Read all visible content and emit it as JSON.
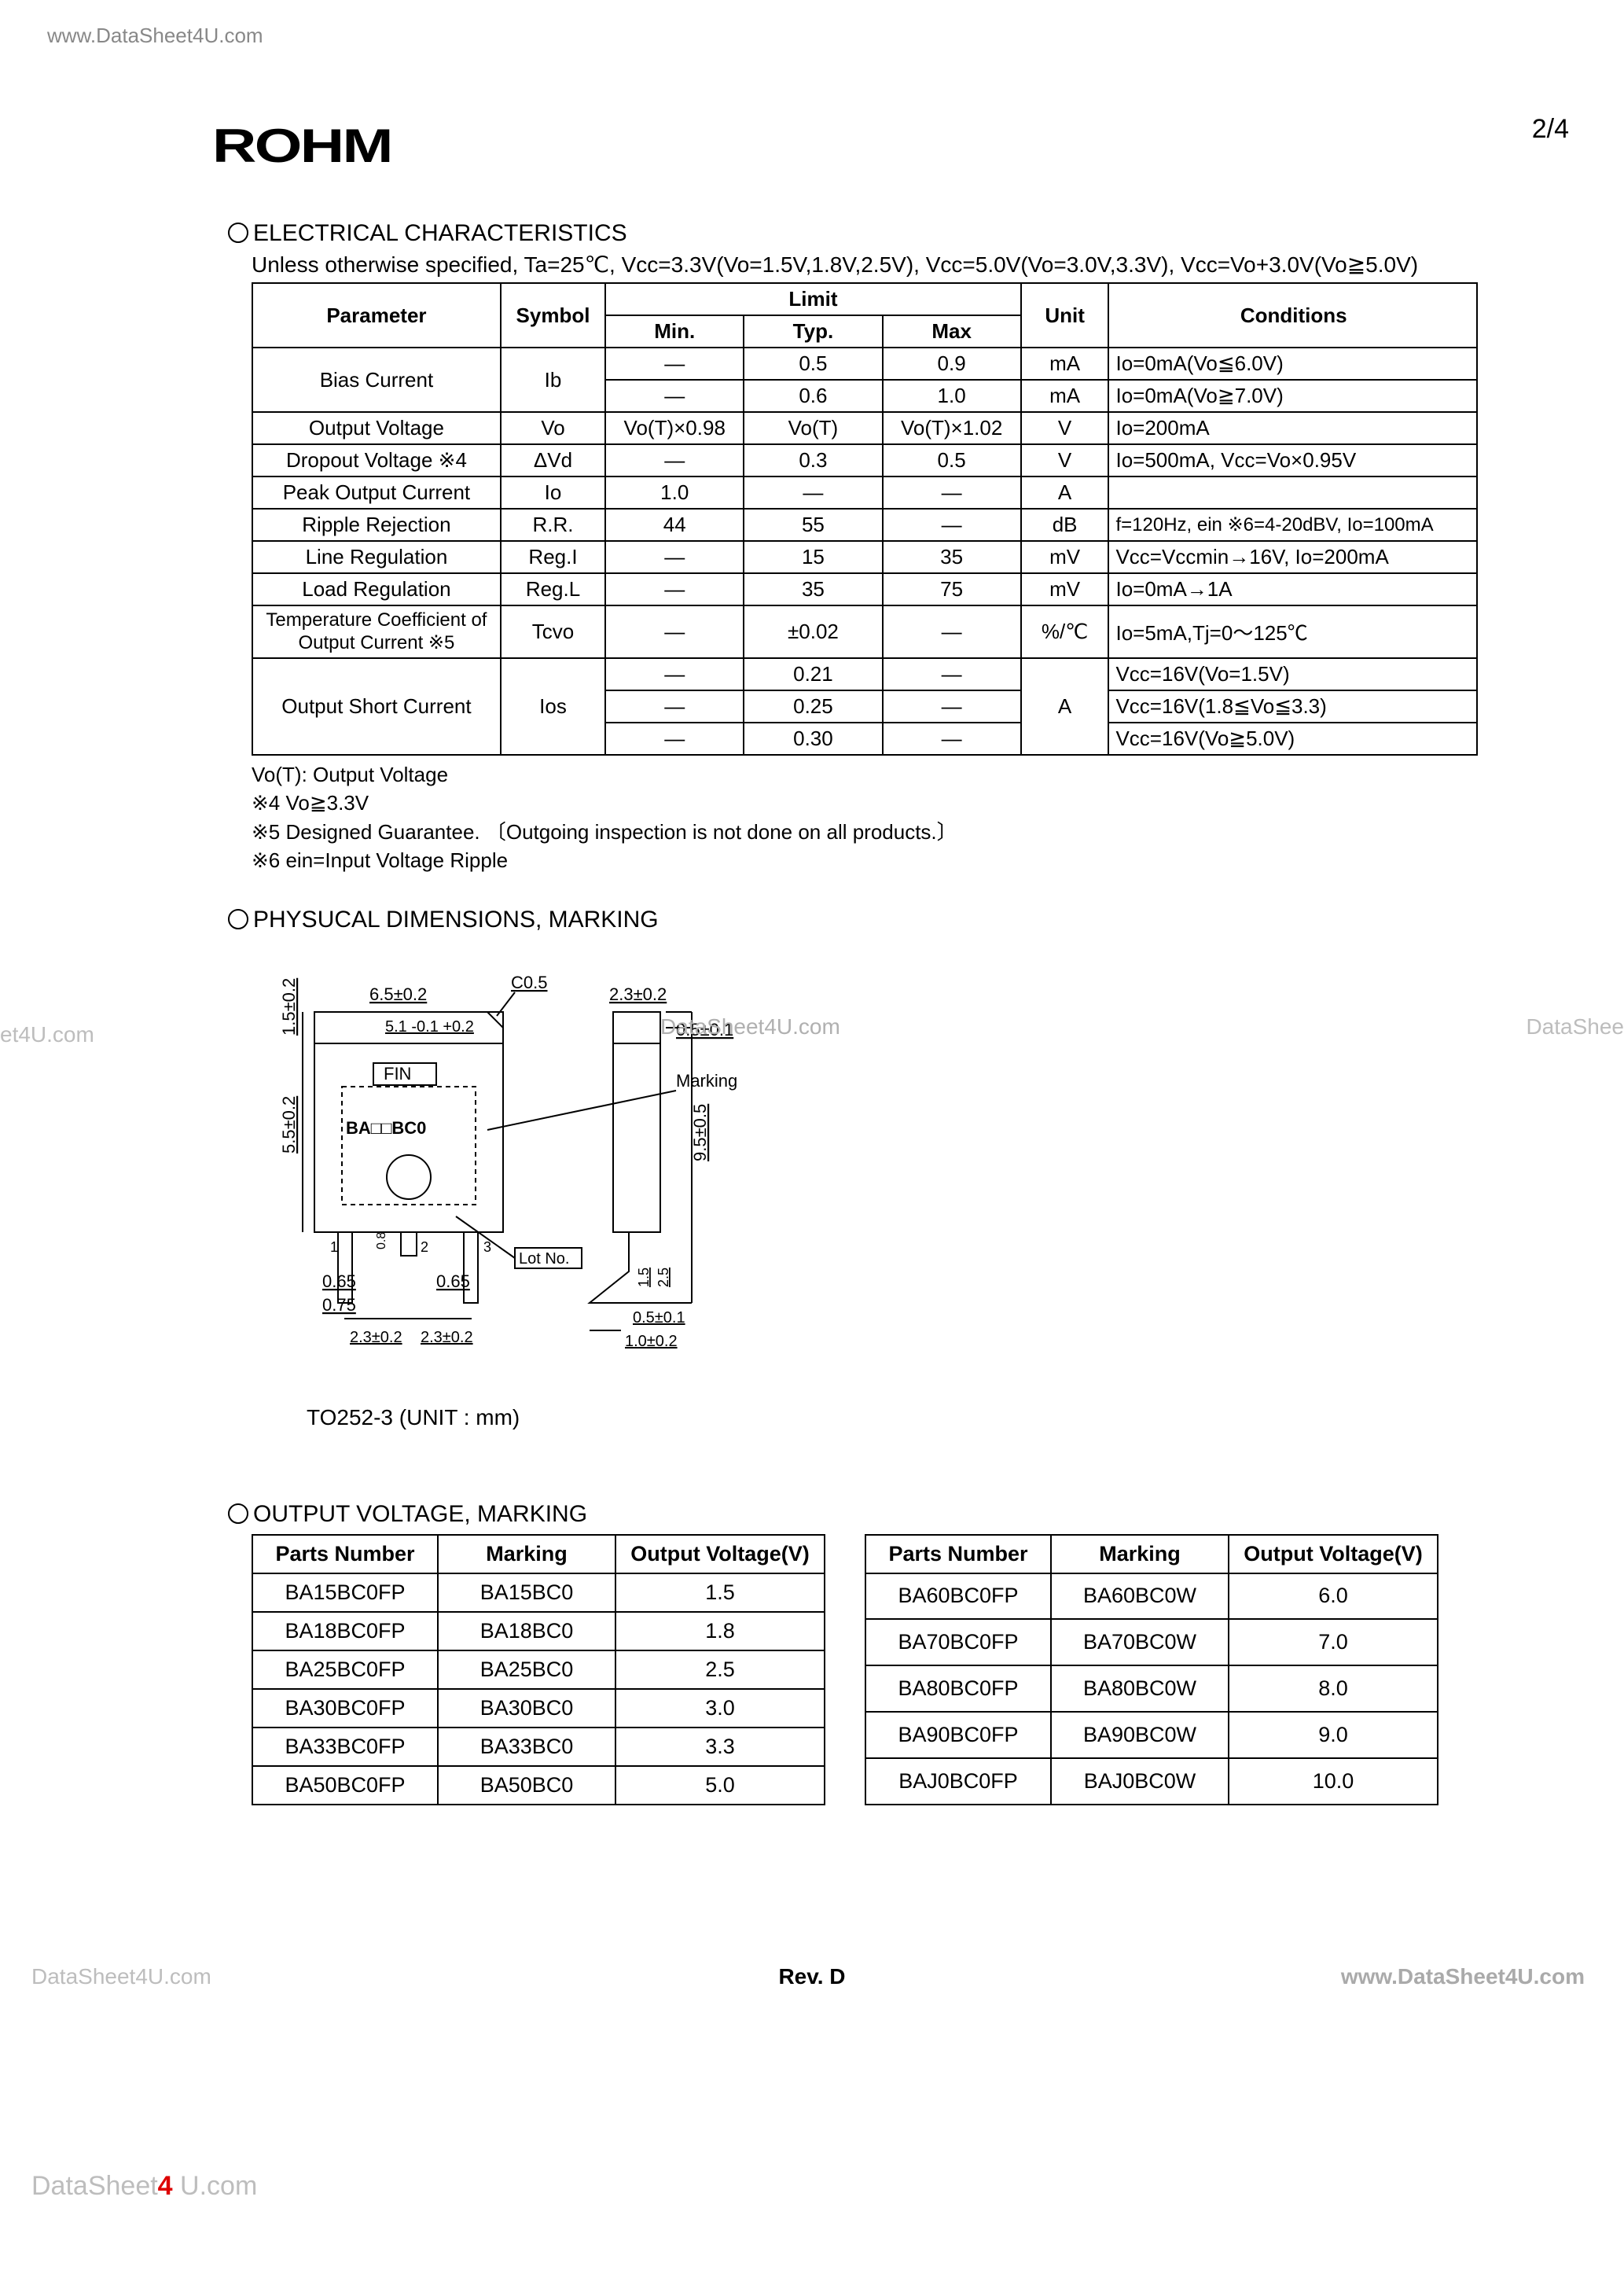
{
  "watermarks": {
    "url_top": "www.DataSheet4U.com",
    "wm_left": "et4U.com",
    "wm_mid": "DataSheet4U.com",
    "wm_right": "DataShee",
    "wm_bl": "DataSheet4U.com",
    "wm_br": "www.DataSheet4U.com",
    "ds4u_prefix": "DataSheet",
    "ds4u_four": "4",
    "ds4u_suffix": " U.com"
  },
  "logo": "ROHM",
  "pagenum": "2/4",
  "rev": "Rev. D",
  "sec1": {
    "title": "ELECTRICAL CHARACTERISTICS",
    "subtitle": "Unless otherwise specified, Ta=25℃, Vcc=3.3V(Vo=1.5V,1.8V,2.5V), Vcc=5.0V(Vo=3.0V,3.3V), Vcc=Vo+3.0V(Vo≧5.0V)",
    "headers": {
      "parameter": "Parameter",
      "symbol": "Symbol",
      "limit": "Limit",
      "min": "Min.",
      "typ": "Typ.",
      "max": "Max",
      "unit": "Unit",
      "conditions": "Conditions"
    },
    "rows": [
      {
        "param": "Bias Current",
        "rowspan": 2,
        "sym": "Ib",
        "min": "—",
        "typ": "0.5",
        "max": "0.9",
        "unit": "mA",
        "cond": "Io=0mA(Vo≦6.0V)"
      },
      {
        "param": "",
        "sym": "",
        "min": "—",
        "typ": "0.6",
        "max": "1.0",
        "unit": "mA",
        "cond": "Io=0mA(Vo≧7.0V)"
      },
      {
        "param": "Output Voltage",
        "sym": "Vo",
        "min": "Vo(T)×0.98",
        "typ": "Vo(T)",
        "max": "Vo(T)×1.02",
        "unit": "V",
        "cond": "Io=200mA"
      },
      {
        "param": "Dropout Voltage  ※4",
        "sym": "ΔVd",
        "min": "—",
        "typ": "0.3",
        "max": "0.5",
        "unit": "V",
        "cond": "Io=500mA, Vcc=Vo×0.95V"
      },
      {
        "param": "Peak Output Current",
        "sym": "Io",
        "min": "1.0",
        "typ": "—",
        "max": "—",
        "unit": "A",
        "cond": ""
      },
      {
        "param": "Ripple Rejection",
        "sym": "R.R.",
        "min": "44",
        "typ": "55",
        "max": "—",
        "unit": "dB",
        "cond": "f=120Hz, ein ※6=4-20dBV, Io=100mA"
      },
      {
        "param": "Line Regulation",
        "sym": "Reg.I",
        "min": "—",
        "typ": "15",
        "max": "35",
        "unit": "mV",
        "cond": "Vcc=Vccmin→16V, Io=200mA"
      },
      {
        "param": "Load Regulation",
        "sym": "Reg.L",
        "min": "—",
        "typ": "35",
        "max": "75",
        "unit": "mV",
        "cond": "Io=0mA→1A"
      },
      {
        "param": "Temperature Coefficient of Output Current  ※5",
        "sym": "Tcvo",
        "min": "—",
        "typ": "±0.02",
        "max": "—",
        "unit": "%/℃",
        "cond": "Io=5mA,Tj=0～125℃"
      },
      {
        "param": "Output Short Current",
        "rowspan": 3,
        "sym": "Ios",
        "min": "—",
        "typ": "0.21",
        "max": "—",
        "unit": "A",
        "cond": "Vcc=16V(Vo=1.5V)"
      },
      {
        "param": "",
        "sym": "",
        "min": "—",
        "typ": "0.25",
        "max": "—",
        "unit": "",
        "cond": "Vcc=16V(1.8≦Vo≦3.3)"
      },
      {
        "param": "",
        "sym": "",
        "min": "—",
        "typ": "0.30",
        "max": "—",
        "unit": "",
        "cond": "Vcc=16V(Vo≧5.0V)"
      }
    ],
    "notes": [
      "Vo(T): Output Voltage",
      "※4   Vo≧3.3V",
      "※5   Designed Guarantee. 〔Outgoing inspection is not done on all products.〕",
      "※6   ein=Input Voltage Ripple"
    ]
  },
  "sec2": {
    "title": "PHYSUCAL DIMENSIONS, MARKING",
    "caption": "TO252-3   (UNIT : mm)",
    "dims": {
      "c05": "C0.5",
      "d65": "6.5±0.2",
      "d51": "5.1 -0.1 +0.2",
      "d15": "1.5±0.2",
      "d55": "5.5±0.2",
      "fin": "FIN",
      "mark": "BA□□BC0",
      "lot": "Lot No.",
      "d065a": "0.65",
      "d065b": "0.65",
      "d075": "0.75",
      "d08": "0.8",
      "pitch1": "2.3±0.2",
      "pitch2": "2.3±0.2",
      "d23": "2.3±0.2",
      "d05a": "0.5±0.1",
      "d95": "9.5±0.5",
      "marking": "Marking",
      "d25": "2.5",
      "d15b": "1.5",
      "d05b": "0.5±0.1",
      "d10": "1.0±0.2",
      "p1": "1",
      "p2": "2",
      "p3": "3"
    }
  },
  "sec3": {
    "title": "OUTPUT VOLTAGE, MARKING",
    "headers": {
      "pn": "Parts Number",
      "mk": "Marking",
      "ov": "Output Voltage(V)"
    },
    "left": [
      {
        "pn": "BA15BC0FP",
        "mk": "BA15BC0",
        "ov": "1.5"
      },
      {
        "pn": "BA18BC0FP",
        "mk": "BA18BC0",
        "ov": "1.8"
      },
      {
        "pn": "BA25BC0FP",
        "mk": "BA25BC0",
        "ov": "2.5"
      },
      {
        "pn": "BA30BC0FP",
        "mk": "BA30BC0",
        "ov": "3.0"
      },
      {
        "pn": "BA33BC0FP",
        "mk": "BA33BC0",
        "ov": "3.3"
      },
      {
        "pn": "BA50BC0FP",
        "mk": "BA50BC0",
        "ov": "5.0"
      }
    ],
    "right": [
      {
        "pn": "BA60BC0FP",
        "mk": "BA60BC0W",
        "ov": "6.0"
      },
      {
        "pn": "BA70BC0FP",
        "mk": "BA70BC0W",
        "ov": "7.0"
      },
      {
        "pn": "BA80BC0FP",
        "mk": "BA80BC0W",
        "ov": "8.0"
      },
      {
        "pn": "BA90BC0FP",
        "mk": "BA90BC0W",
        "ov": "9.0"
      },
      {
        "pn": "BAJ0BC0FP",
        "mk": "BAJ0BC0W",
        "ov": "10.0"
      }
    ]
  }
}
